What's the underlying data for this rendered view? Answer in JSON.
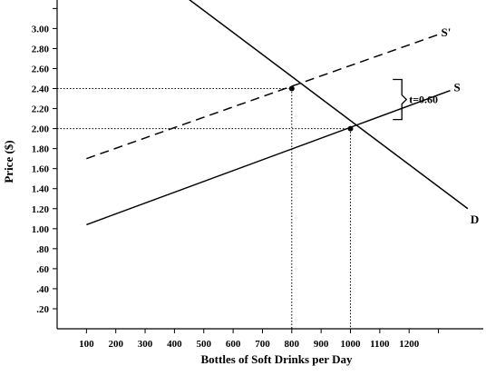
{
  "chart_data": {
    "type": "line",
    "xlabel": "Bottles of Soft Drinks per Day",
    "ylabel": "Price ($)",
    "xlim": [
      0,
      1400
    ],
    "ylim": [
      0,
      3.4
    ],
    "x_ticks": [
      100,
      200,
      300,
      400,
      500,
      600,
      700,
      800,
      900,
      1000,
      1100,
      1200,
      1300
    ],
    "x_tick_labels": [
      "100",
      "200",
      "300",
      "400",
      "500",
      "600",
      "700",
      "800",
      "900",
      "1000",
      "1100",
      "1200"
    ],
    "y_ticks": [
      0.2,
      0.4,
      0.6,
      0.8,
      1.0,
      1.2,
      1.4,
      1.6,
      1.8,
      2.0,
      2.2,
      2.4,
      2.6,
      2.8,
      3.0,
      3.2
    ],
    "y_tick_labels": [
      ".20",
      ".40",
      ".60",
      ".80",
      "1.00",
      "1.20",
      "1.40",
      "1.60",
      "1.80",
      "2.00",
      "2.20",
      "2.40",
      "2.60",
      "2.80",
      "3.00"
    ],
    "series": [
      {
        "name": "S",
        "style": "solid",
        "x": [
          100,
          1340
        ],
        "y": [
          1.04,
          2.38
        ]
      },
      {
        "name": "S'",
        "style": "dashed",
        "x": [
          100,
          1300
        ],
        "y": [
          1.7,
          2.94
        ]
      },
      {
        "name": "D",
        "style": "solid",
        "x": [
          400,
          1400
        ],
        "y": [
          3.4,
          1.2
        ]
      }
    ],
    "points": [
      {
        "x": 800,
        "y": 2.4
      },
      {
        "x": 1000,
        "y": 2.0
      }
    ],
    "reference_lines": [
      {
        "price": 2.4,
        "quantity": 800
      },
      {
        "price": 2.0,
        "quantity": 1000
      }
    ],
    "tax_annotation": {
      "text": "t=0.60",
      "y_from": 2.0,
      "y_to": 2.6,
      "x": 1030
    },
    "grid": false,
    "legend": "none"
  }
}
